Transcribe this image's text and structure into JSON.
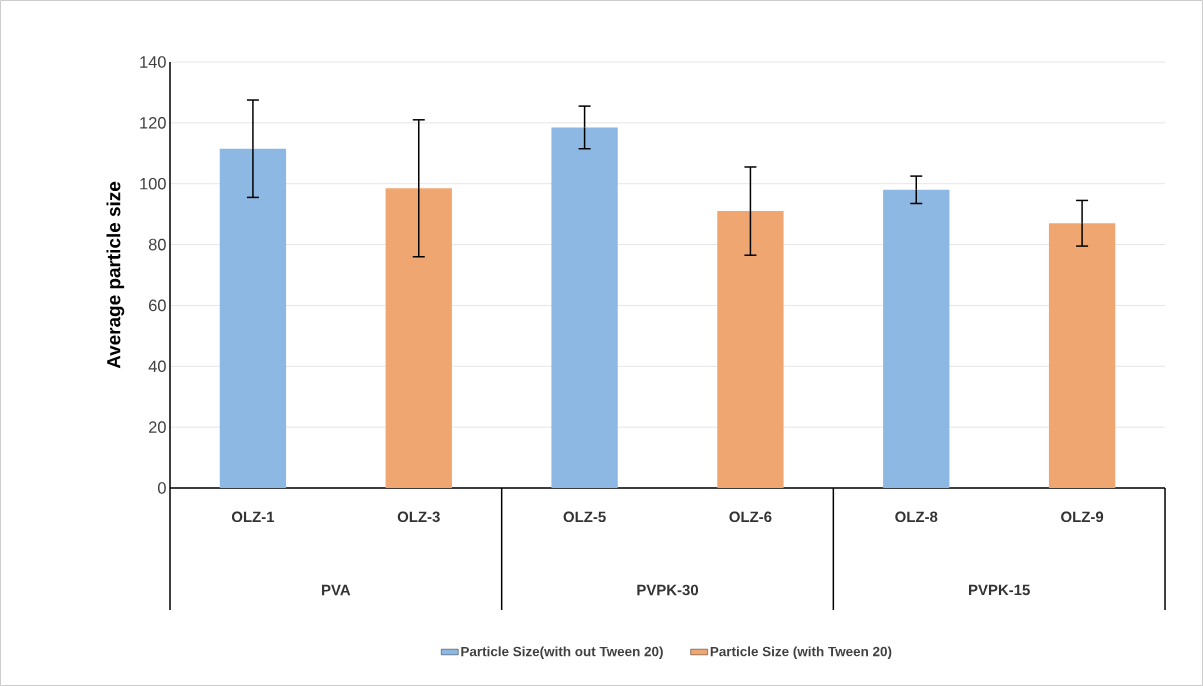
{
  "chart_data": {
    "type": "bar",
    "categories": [
      "OLZ-1",
      "OLZ-3",
      "OLZ-5",
      "OLZ-6",
      "OLZ-8",
      "OLZ-9"
    ],
    "series": [
      {
        "name": "Particle Size(with out Tween 20)",
        "color": "#8db8e3",
        "values": [
          111.5,
          null,
          118.5,
          null,
          98,
          null
        ],
        "errors": [
          16,
          null,
          7,
          null,
          4.5,
          null
        ]
      },
      {
        "name": "Particle Size (with Tween 20)",
        "color": "#f0a671",
        "values": [
          null,
          98.5,
          null,
          91,
          null,
          87
        ],
        "errors": [
          null,
          22.5,
          null,
          14.5,
          null,
          7.5
        ]
      }
    ],
    "annotations": [
      "PVA",
      "PVPK-30",
      "PVPK-15"
    ],
    "ylabel": "Average particle size",
    "ylim": [
      0,
      140
    ],
    "yticks": [
      0,
      20,
      40,
      60,
      80,
      100,
      120,
      140
    ],
    "grid": "y",
    "legend": "bottom"
  }
}
